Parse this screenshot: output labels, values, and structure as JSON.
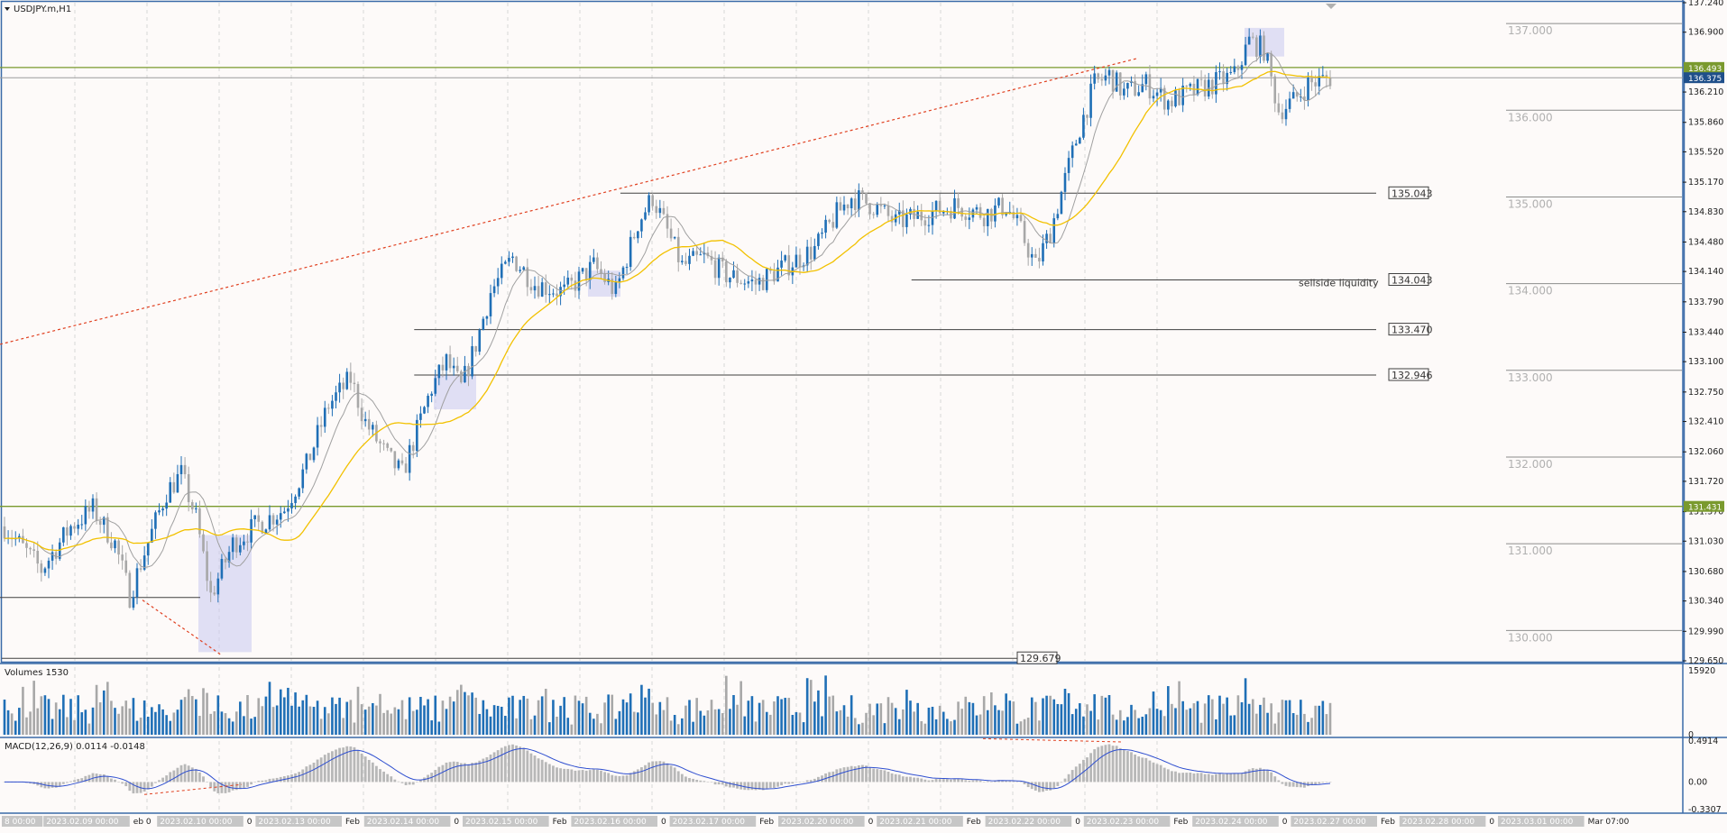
{
  "chart_data": {
    "type": "candlestick",
    "symbol_label": "USDJPY.m,H1",
    "price_axis": {
      "ylim": [
        129.65,
        137.24
      ],
      "ticks": [
        "137.240",
        "136.900",
        "136.210",
        "135.860",
        "135.520",
        "135.170",
        "134.830",
        "134.480",
        "134.140",
        "133.790",
        "133.440",
        "133.100",
        "132.750",
        "132.410",
        "132.060",
        "131.720",
        "131.370",
        "131.030",
        "130.680",
        "130.340",
        "129.990",
        "129.650"
      ],
      "tick_values": [
        137.24,
        136.9,
        136.21,
        135.86,
        135.52,
        135.17,
        134.83,
        134.48,
        134.14,
        133.79,
        133.44,
        133.1,
        132.75,
        132.41,
        132.06,
        131.72,
        131.37,
        131.03,
        130.68,
        130.34,
        129.99,
        129.65
      ],
      "bid_label": "136.375",
      "bid_value": 136.375,
      "green_levels": [
        {
          "label": "136.493",
          "value": 136.493
        },
        {
          "label": "131.431",
          "value": 131.431
        }
      ]
    },
    "levels": [
      {
        "label": "135.043",
        "value": 135.043,
        "x_from": 0.51
      },
      {
        "label": "134.043",
        "value": 134.043,
        "x_from": 0.75
      },
      {
        "label": "133.470",
        "value": 133.47,
        "x_from": 0.34
      },
      {
        "label": "132.946",
        "value": 132.946,
        "x_from": 0.34
      },
      {
        "label": "129.679",
        "value": 129.679,
        "x_from": 0.0
      }
    ],
    "right_levels": [
      {
        "label": "137.000",
        "value": 137.0
      },
      {
        "label": "136.000",
        "value": 136.0
      },
      {
        "label": "135.000",
        "value": 135.0
      },
      {
        "label": "134.000",
        "value": 134.0
      },
      {
        "label": "133.000",
        "value": 133.0
      },
      {
        "label": "132.000",
        "value": 132.0
      },
      {
        "label": "131.000",
        "value": 131.0
      },
      {
        "label": "130.000",
        "value": 130.0
      }
    ],
    "annotations": [
      {
        "text": "sellside liquidity",
        "value": 134.0
      }
    ],
    "price_path": [
      [
        0,
        131.2
      ],
      [
        10,
        130.7
      ],
      [
        18,
        131.2
      ],
      [
        24,
        131.4
      ],
      [
        30,
        131.0
      ],
      [
        34,
        130.4
      ],
      [
        38,
        130.9
      ],
      [
        44,
        131.6
      ],
      [
        48,
        131.8
      ],
      [
        52,
        131.3
      ],
      [
        56,
        130.4
      ],
      [
        62,
        131.0
      ],
      [
        68,
        131.2
      ],
      [
        76,
        131.4
      ],
      [
        82,
        131.9
      ],
      [
        88,
        132.6
      ],
      [
        94,
        132.9
      ],
      [
        98,
        132.4
      ],
      [
        104,
        132.0
      ],
      [
        108,
        131.8
      ],
      [
        112,
        132.3
      ],
      [
        116,
        132.8
      ],
      [
        120,
        133.1
      ],
      [
        124,
        132.8
      ],
      [
        128,
        133.3
      ],
      [
        132,
        133.9
      ],
      [
        138,
        134.3
      ],
      [
        144,
        134.0
      ],
      [
        152,
        133.9
      ],
      [
        160,
        134.2
      ],
      [
        166,
        133.9
      ],
      [
        172,
        134.7
      ],
      [
        176,
        135.0
      ],
      [
        180,
        134.6
      ],
      [
        184,
        134.2
      ],
      [
        190,
        134.3
      ],
      [
        196,
        134.1
      ],
      [
        204,
        134.0
      ],
      [
        212,
        134.2
      ],
      [
        220,
        134.4
      ],
      [
        226,
        134.8
      ],
      [
        230,
        135.0
      ],
      [
        236,
        134.9
      ],
      [
        242,
        134.7
      ],
      [
        250,
        134.8
      ],
      [
        258,
        134.9
      ],
      [
        266,
        134.8
      ],
      [
        272,
        134.9
      ],
      [
        276,
        134.6
      ],
      [
        280,
        134.2
      ],
      [
        284,
        134.6
      ],
      [
        288,
        135.2
      ],
      [
        292,
        135.8
      ],
      [
        296,
        136.3
      ],
      [
        300,
        136.4
      ],
      [
        304,
        136.2
      ],
      [
        310,
        136.3
      ],
      [
        316,
        136.1
      ],
      [
        322,
        136.2
      ],
      [
        328,
        136.3
      ],
      [
        334,
        136.4
      ],
      [
        338,
        136.8
      ],
      [
        342,
        136.7
      ],
      [
        346,
        136.0
      ],
      [
        350,
        136.1
      ],
      [
        354,
        136.3
      ],
      [
        358,
        136.35
      ],
      [
        360,
        136.375
      ]
    ],
    "volume_panel": {
      "label": "Volumes 1530",
      "ticks": [
        "15920",
        "0"
      ],
      "tick_values": [
        15920,
        0
      ],
      "ylim": [
        0,
        15920
      ]
    },
    "macd_panel": {
      "label": "MACD(12,26,9) 0.0114 -0.0148",
      "ticks": [
        "0.4914",
        "0.00",
        "-0.3307"
      ],
      "tick_values": [
        0.4914,
        0.0,
        -0.3307
      ],
      "ylim": [
        -0.3307,
        0.4914
      ]
    },
    "time_axis": {
      "labels": [
        "8 00:00",
        "2023.02.09 00:00",
        "eb 0",
        "2023.02.10 00:00",
        "0",
        "2023.02.13 00:00",
        "Feb",
        "2023.02.14 00:00",
        "0",
        "2023.02.15 00:00",
        "Feb",
        "2023.02.16 00:00",
        "0",
        "2023.02.17 00:00",
        "Feb",
        "2023.02.20 00:00",
        "0",
        "2023.02.21 00:00",
        "Feb",
        "2023.02.22 00:00",
        "0",
        "2023.02.23 00:00",
        "Feb",
        "2023.02.24 00:00",
        "0",
        "2023.02.27 00:00",
        "Feb",
        "2023.02.28 00:00",
        "0",
        "2023.03.01 00:00",
        "Mar 07:00"
      ],
      "highlighted": [
        "8 00:00",
        "2023.02.09 00:00",
        "2023.02.10 00:00",
        "2023.02.13 00:00",
        "2023.02.14 00:00",
        "2023.02.15 00:00",
        "2023.02.16 00:00",
        "2023.02.17 00:00",
        "2023.02.20 00:00",
        "2023.02.21 00:00",
        "2023.02.22 00:00",
        "2023.02.23 00:00",
        "2023.02.24 00:00",
        "2023.02.27 00:00",
        "2023.02.28 00:00",
        "2023.03.01 00:00"
      ]
    },
    "colors": {
      "bull": "#1f6fb6",
      "bear": "#a8a8a8",
      "ma_fast": "#a0a0a0",
      "ma_slow": "#f2c100",
      "green_level": "#7a9a2e",
      "trend_dashed": "#e04020",
      "zone": "#c8c8f0",
      "macd_signal": "#2f4fd0",
      "background": "#fdfaf9",
      "frame": "#3a6aa8"
    }
  }
}
